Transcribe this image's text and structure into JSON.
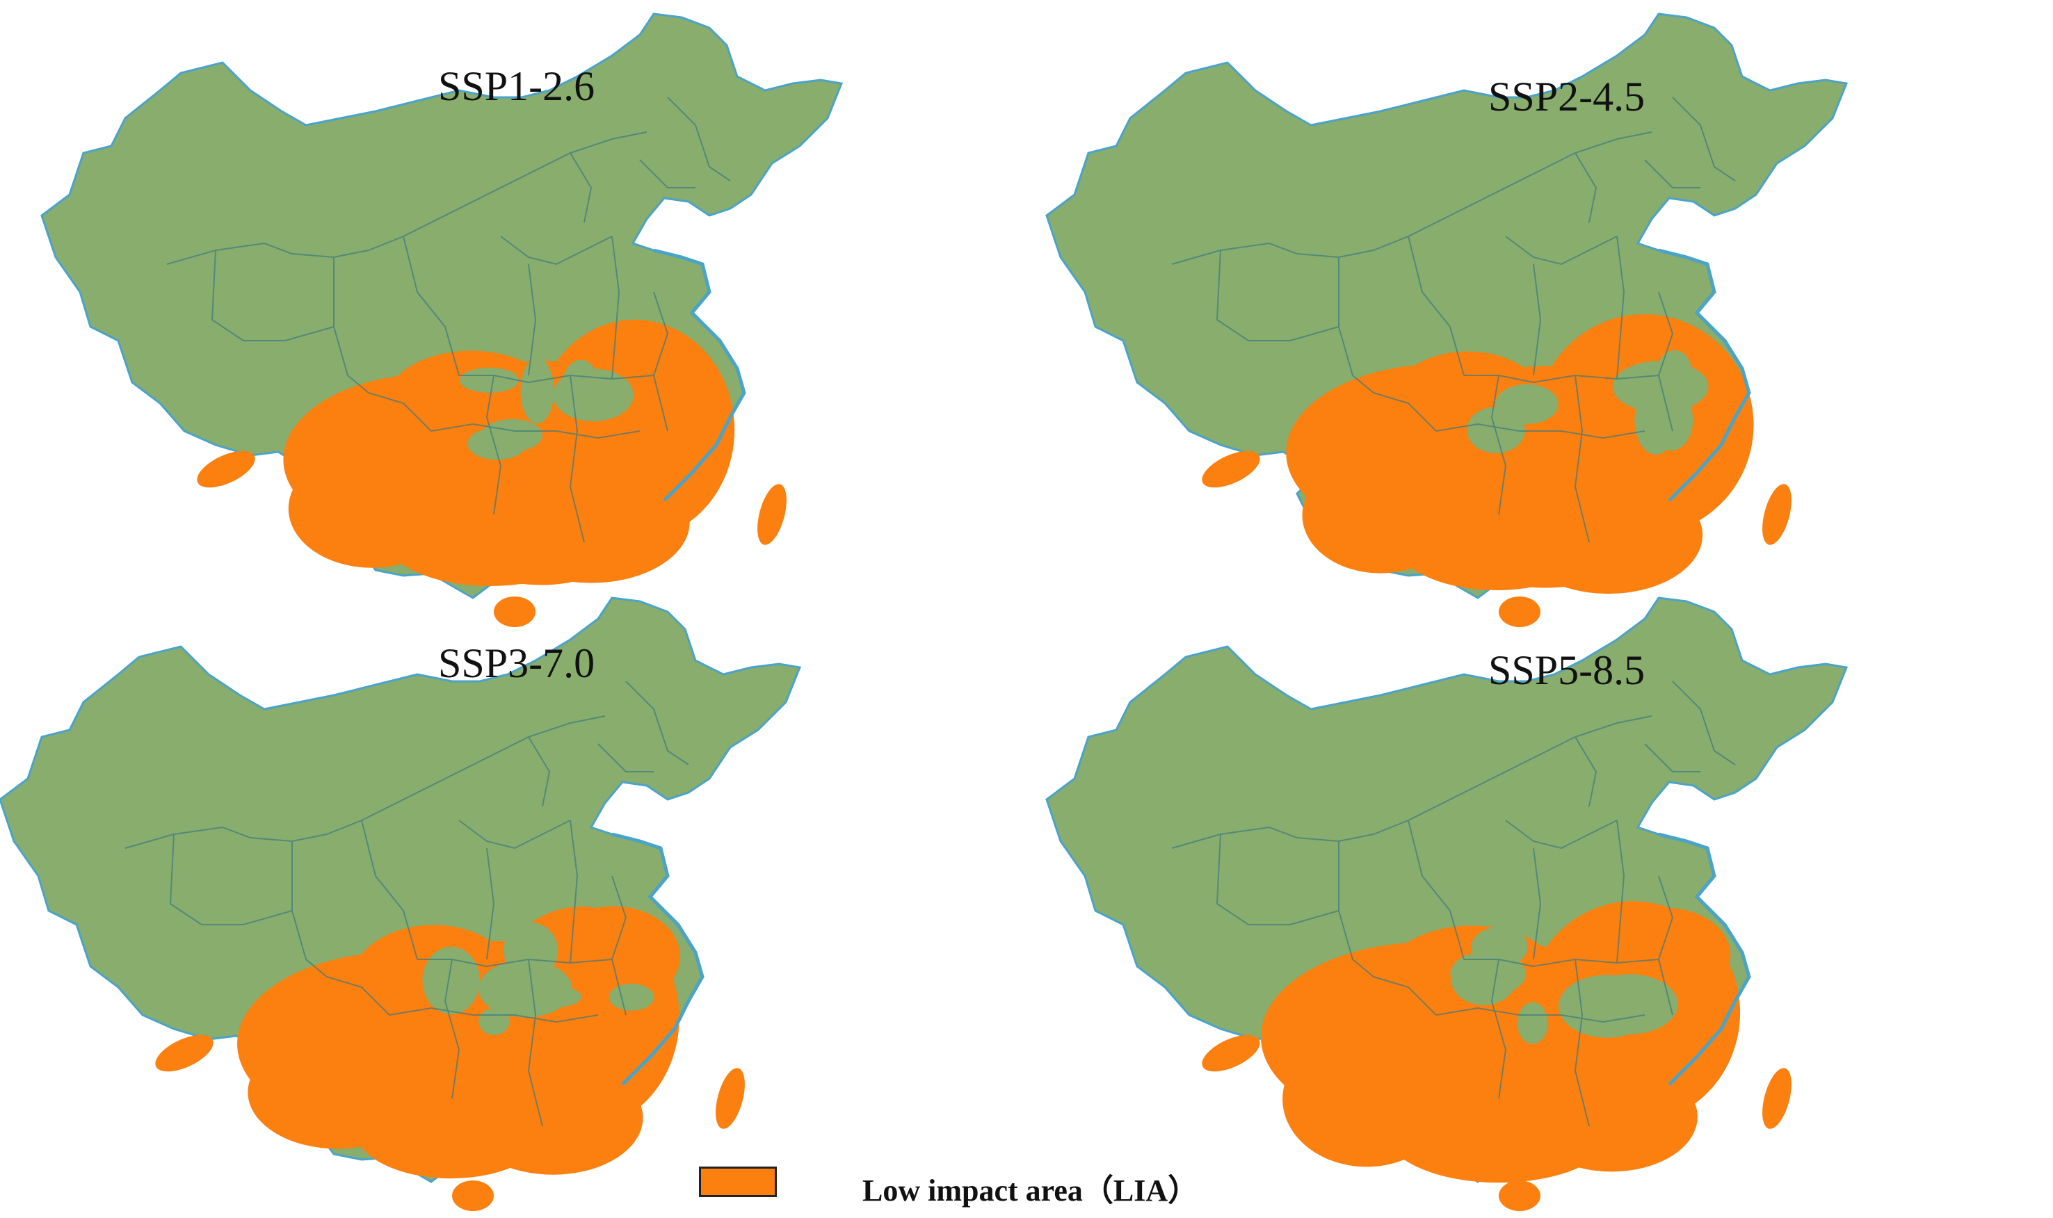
{
  "colors": {
    "land": "#88ad6c",
    "boundary": "#3d7a80",
    "coast": "#4aa3c8",
    "low_impact": "#fb8010",
    "legend_border": "#222222"
  },
  "panels": [
    {
      "scenario": "SSP1-2.6"
    },
    {
      "scenario": "SSP2-4.5"
    },
    {
      "scenario": "SSP3-7.0"
    },
    {
      "scenario": "SSP5-8.5"
    }
  ],
  "legend": {
    "label": "Low impact area（LIA）"
  }
}
